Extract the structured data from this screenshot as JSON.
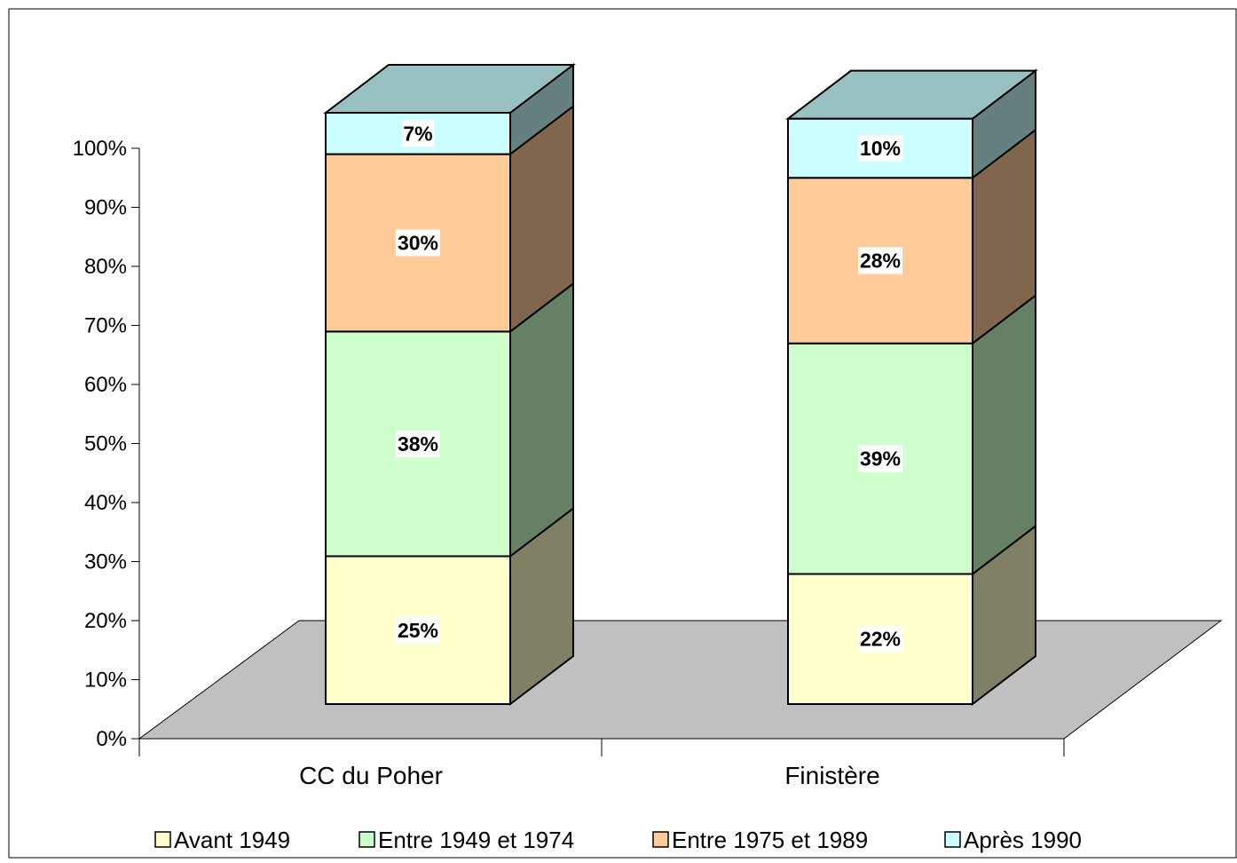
{
  "chart_data": {
    "type": "bar",
    "stacked": true,
    "three_d": true,
    "percent_stacked": true,
    "categories": [
      "CC du Poher",
      "Finistère"
    ],
    "series": [
      {
        "name": "Avant 1949",
        "values": [
          25,
          22
        ],
        "labels": [
          "25%",
          "22%"
        ],
        "color": "#FFFFCC",
        "side_color": "#808066"
      },
      {
        "name": "Entre 1949 et 1974",
        "values": [
          38,
          39
        ],
        "labels": [
          "38%",
          "39%"
        ],
        "color": "#CCFFCC",
        "side_color": "#668066"
      },
      {
        "name": "Entre 1975 et 1989",
        "values": [
          30,
          28
        ],
        "labels": [
          "30%",
          "28%"
        ],
        "color": "#FFCC99",
        "side_color": "#80664C"
      },
      {
        "name": "Après 1990",
        "values": [
          7,
          10
        ],
        "labels": [
          "7%",
          "10%"
        ],
        "color": "#CCFFFF",
        "side_color": "#668080"
      }
    ],
    "top_color": "#99C0C0",
    "floor_color": "#C0C0C0",
    "y_ticks": [
      "0%",
      "10%",
      "20%",
      "30%",
      "40%",
      "50%",
      "60%",
      "70%",
      "80%",
      "90%",
      "100%"
    ],
    "ylim": [
      0,
      100
    ],
    "grid": false,
    "legend_position": "bottom",
    "title": "",
    "xlabel": "",
    "ylabel": ""
  }
}
